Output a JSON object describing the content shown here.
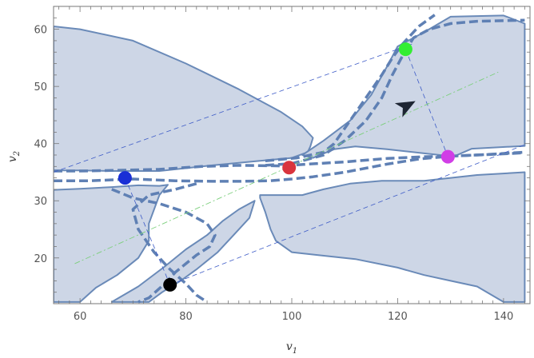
{
  "chart_data": {
    "type": "scatter",
    "title": "",
    "xlabel": "v",
    "xlabel_sub": "1",
    "ylabel": "v",
    "ylabel_sub": "2",
    "xlim": [
      55,
      145
    ],
    "ylim": [
      12,
      64
    ],
    "xticks": [
      60,
      80,
      100,
      120,
      140
    ],
    "yticks": [
      20,
      30,
      40,
      50,
      60
    ],
    "grid": false,
    "colors": {
      "region_fill": "#cdd6e6",
      "region_edge": "#6a8ab8",
      "dashed_curve": "#5f80b4",
      "dash_line": "#3d5bc7",
      "diagonal": "#7ccf7c",
      "arrow": "#1d2533"
    },
    "points": [
      {
        "x": 68.5,
        "y": 34.0,
        "color": "#1a2fd6"
      },
      {
        "x": 77.0,
        "y": 15.3,
        "color": "#000000"
      },
      {
        "x": 99.5,
        "y": 35.8,
        "color": "#d9343d"
      },
      {
        "x": 121.5,
        "y": 56.5,
        "color": "#33ee33"
      },
      {
        "x": 129.5,
        "y": 37.7,
        "color": "#d13ee6"
      }
    ],
    "arrow": {
      "x": 121.5,
      "y": 46.5,
      "dx": 1.8,
      "dy": 0.9
    },
    "shaded_regions": [
      [
        [
          55,
          60.5
        ],
        [
          60,
          60
        ],
        [
          70,
          58
        ],
        [
          80,
          54
        ],
        [
          90,
          49.5
        ],
        [
          98,
          45.5
        ],
        [
          102,
          43
        ],
        [
          104,
          41
        ],
        [
          103.5,
          39.5
        ],
        [
          103,
          38.5
        ],
        [
          100,
          37.5
        ],
        [
          94,
          37
        ],
        [
          85,
          36.2
        ],
        [
          75,
          35.2
        ],
        [
          66,
          35.2
        ],
        [
          60,
          35.3
        ],
        [
          55,
          35.3
        ]
      ],
      [
        [
          55,
          31.9
        ],
        [
          60,
          32.1
        ],
        [
          66,
          32.4
        ],
        [
          71,
          32.7
        ],
        [
          75,
          32.6
        ],
        [
          76.6,
          32.8
        ],
        [
          75,
          31
        ],
        [
          73,
          26
        ],
        [
          73,
          23
        ],
        [
          71,
          20
        ],
        [
          67,
          17
        ],
        [
          63,
          14.8
        ],
        [
          60,
          12.3
        ],
        [
          55,
          12.3
        ]
      ],
      [
        [
          102,
          38
        ],
        [
          106,
          40.5
        ],
        [
          111,
          44
        ],
        [
          115,
          48.5
        ],
        [
          118,
          53.5
        ],
        [
          120,
          57
        ],
        [
          122,
          58
        ],
        [
          125,
          59.5
        ],
        [
          130,
          62.2
        ],
        [
          140,
          62.4
        ],
        [
          144,
          61
        ],
        [
          144,
          39.6
        ],
        [
          134,
          39.1
        ],
        [
          131,
          37.9
        ],
        [
          128,
          38
        ],
        [
          125,
          38.3
        ],
        [
          118,
          39
        ],
        [
          112,
          39.5
        ],
        [
          108,
          39
        ],
        [
          104,
          37.5
        ]
      ],
      [
        [
          94,
          30.5
        ],
        [
          95,
          28
        ],
        [
          96,
          25
        ],
        [
          97,
          23
        ],
        [
          100,
          21
        ],
        [
          105,
          20.5
        ],
        [
          112,
          19.8
        ],
        [
          120,
          18.3
        ],
        [
          125,
          17
        ],
        [
          130,
          16
        ],
        [
          135,
          15
        ],
        [
          140,
          12.3
        ],
        [
          144,
          12.3
        ],
        [
          144,
          35
        ],
        [
          135,
          34.5
        ],
        [
          125,
          33.5
        ],
        [
          117,
          33.5
        ],
        [
          111,
          33
        ],
        [
          106,
          32
        ],
        [
          102,
          31
        ],
        [
          98,
          31
        ],
        [
          94,
          31
        ]
      ],
      [
        [
          66,
          12.3
        ],
        [
          71,
          15
        ],
        [
          76,
          18.5
        ],
        [
          80,
          21.5
        ],
        [
          84,
          24
        ],
        [
          87,
          26.5
        ],
        [
          90,
          28.5
        ],
        [
          93,
          30
        ],
        [
          92,
          27
        ],
        [
          89,
          24
        ],
        [
          86,
          21
        ],
        [
          82,
          18
        ],
        [
          79,
          16
        ],
        [
          75.5,
          14
        ],
        [
          73,
          12.3
        ]
      ]
    ],
    "dashed_curves": [
      [
        [
          55,
          33.5
        ],
        [
          62,
          33.5
        ],
        [
          70,
          33.8
        ],
        [
          78,
          33.5
        ],
        [
          85,
          33.4
        ],
        [
          90,
          33.4
        ],
        [
          96,
          33.5
        ],
        [
          100,
          33.8
        ],
        [
          104,
          34.2
        ],
        [
          110,
          35
        ],
        [
          118,
          36.4
        ],
        [
          124,
          37.3
        ],
        [
          130,
          37.8
        ],
        [
          135,
          38
        ],
        [
          142,
          38.3
        ],
        [
          144,
          38.4
        ]
      ],
      [
        [
          55,
          35.2
        ],
        [
          60,
          35.2
        ],
        [
          66,
          35.3
        ],
        [
          75,
          35.5
        ],
        [
          83,
          36
        ],
        [
          90,
          36.2
        ],
        [
          98,
          36.1
        ],
        [
          103,
          36.4
        ],
        [
          110,
          36.8
        ],
        [
          118,
          37.4
        ],
        [
          125,
          37.7
        ],
        [
          130,
          37.8
        ],
        [
          137,
          38.1
        ],
        [
          144,
          38.5
        ]
      ],
      [
        [
          95,
          36.2
        ],
        [
          100,
          36.5
        ],
        [
          106,
          38
        ],
        [
          110,
          40.5
        ],
        [
          114,
          44
        ],
        [
          117,
          48
        ],
        [
          119,
          52
        ],
        [
          121,
          55.5
        ],
        [
          123,
          58.5
        ],
        [
          126,
          60
        ],
        [
          130,
          61
        ],
        [
          135,
          61.4
        ],
        [
          144,
          61.6
        ]
      ],
      [
        [
          95,
          37
        ],
        [
          101,
          37.5
        ],
        [
          106,
          38.5
        ],
        [
          108,
          40
        ],
        [
          111,
          44
        ],
        [
          114,
          48
        ],
        [
          117,
          52
        ],
        [
          119,
          55
        ],
        [
          121,
          57.5
        ],
        [
          124,
          60.5
        ],
        [
          127,
          62.5
        ]
      ],
      [
        [
          66,
          32
        ],
        [
          70,
          30.5
        ],
        [
          75,
          29.5
        ],
        [
          80,
          28
        ],
        [
          84,
          26
        ],
        [
          85.5,
          24
        ],
        [
          84.5,
          22
        ],
        [
          82,
          20.5
        ],
        [
          80,
          19
        ],
        [
          78,
          17.5
        ],
        [
          76,
          15.5
        ],
        [
          73,
          13
        ],
        [
          71,
          12.3
        ]
      ],
      [
        [
          82,
          33
        ],
        [
          78,
          32
        ],
        [
          73,
          31
        ],
        [
          70,
          28.5
        ],
        [
          71,
          25
        ],
        [
          74,
          21
        ],
        [
          77,
          18
        ],
        [
          80,
          15.5
        ],
        [
          82,
          13.5
        ],
        [
          84,
          12.3
        ]
      ]
    ],
    "dashed_lines": [
      [
        [
          55,
          35
        ],
        [
          123,
          57.5
        ]
      ],
      [
        [
          68.5,
          34
        ],
        [
          77,
          15.3
        ]
      ],
      [
        [
          77,
          15.3
        ],
        [
          144,
          39.8
        ]
      ],
      [
        [
          121.5,
          56.5
        ],
        [
          129.5,
          37.7
        ]
      ]
    ],
    "diagonal": [
      [
        59,
        19
      ],
      [
        139,
        52.5
      ]
    ]
  }
}
